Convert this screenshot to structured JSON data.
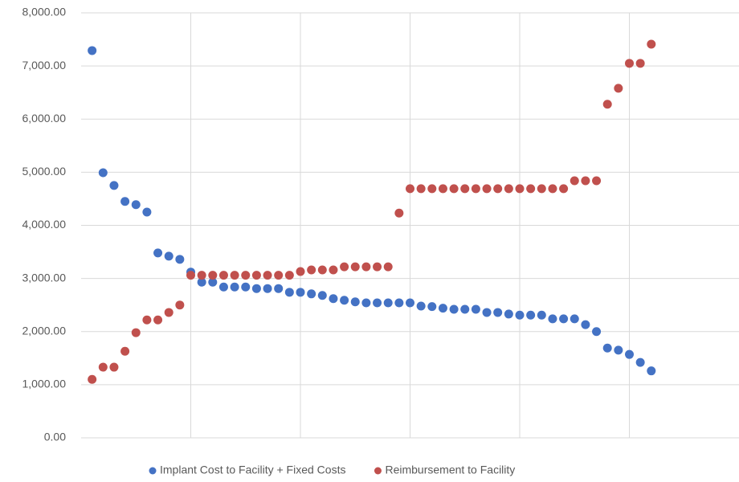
{
  "chart_data": {
    "type": "scatter",
    "x": [
      1,
      2,
      3,
      4,
      5,
      6,
      7,
      8,
      9,
      10,
      11,
      12,
      13,
      14,
      15,
      16,
      17,
      18,
      19,
      20,
      21,
      22,
      23,
      24,
      25,
      26,
      27,
      28,
      29,
      30,
      31,
      32,
      33,
      34,
      35,
      36,
      37,
      38,
      39,
      40,
      41,
      42,
      43,
      44,
      45,
      46,
      47,
      48,
      49,
      50,
      51,
      52
    ],
    "series": [
      {
        "name": "Implant Cost to Facility + Fixed Costs",
        "color": "#4472c4",
        "values": [
          7290,
          4990,
          4750,
          4450,
          4390,
          4250,
          3480,
          3420,
          3360,
          3120,
          2930,
          2930,
          2840,
          2840,
          2840,
          2810,
          2810,
          2810,
          2740,
          2740,
          2710,
          2680,
          2620,
          2590,
          2560,
          2540,
          2540,
          2540,
          2540,
          2540,
          2480,
          2470,
          2440,
          2420,
          2420,
          2420,
          2360,
          2360,
          2330,
          2310,
          2310,
          2310,
          2240,
          2240,
          2240,
          2130,
          2000,
          1690,
          1650,
          1570,
          1420,
          1260
        ]
      },
      {
        "name": "Reimbursement to Facility",
        "color": "#c0504d",
        "values": [
          1100,
          1330,
          1330,
          1630,
          1980,
          2220,
          2220,
          2360,
          2500,
          3060,
          3060,
          3060,
          3060,
          3060,
          3060,
          3060,
          3060,
          3060,
          3060,
          3130,
          3160,
          3160,
          3160,
          3220,
          3220,
          3220,
          3220,
          3220,
          4230,
          4690,
          4690,
          4690,
          4690,
          4690,
          4690,
          4690,
          4690,
          4690,
          4690,
          4690,
          4690,
          4690,
          4690,
          4690,
          4840,
          4840,
          4840,
          6280,
          6580,
          7050,
          7050,
          7410
        ]
      }
    ],
    "xlim": [
      0,
      60
    ],
    "xticks": [
      10,
      20,
      30,
      40,
      50
    ],
    "ylim": [
      0,
      8000
    ],
    "yticks": [
      {
        "value": 0,
        "label": "0.00"
      },
      {
        "value": 1000,
        "label": "1,000.00"
      },
      {
        "value": 2000,
        "label": "2,000.00"
      },
      {
        "value": 3000,
        "label": "3,000.00"
      },
      {
        "value": 4000,
        "label": "4,000.00"
      },
      {
        "value": 5000,
        "label": "5,000.00"
      },
      {
        "value": 6000,
        "label": "6,000.00"
      },
      {
        "value": 7000,
        "label": "7,000.00"
      },
      {
        "value": 8000,
        "label": "8,000.00"
      }
    ],
    "grid": true,
    "legend": "bottom"
  }
}
